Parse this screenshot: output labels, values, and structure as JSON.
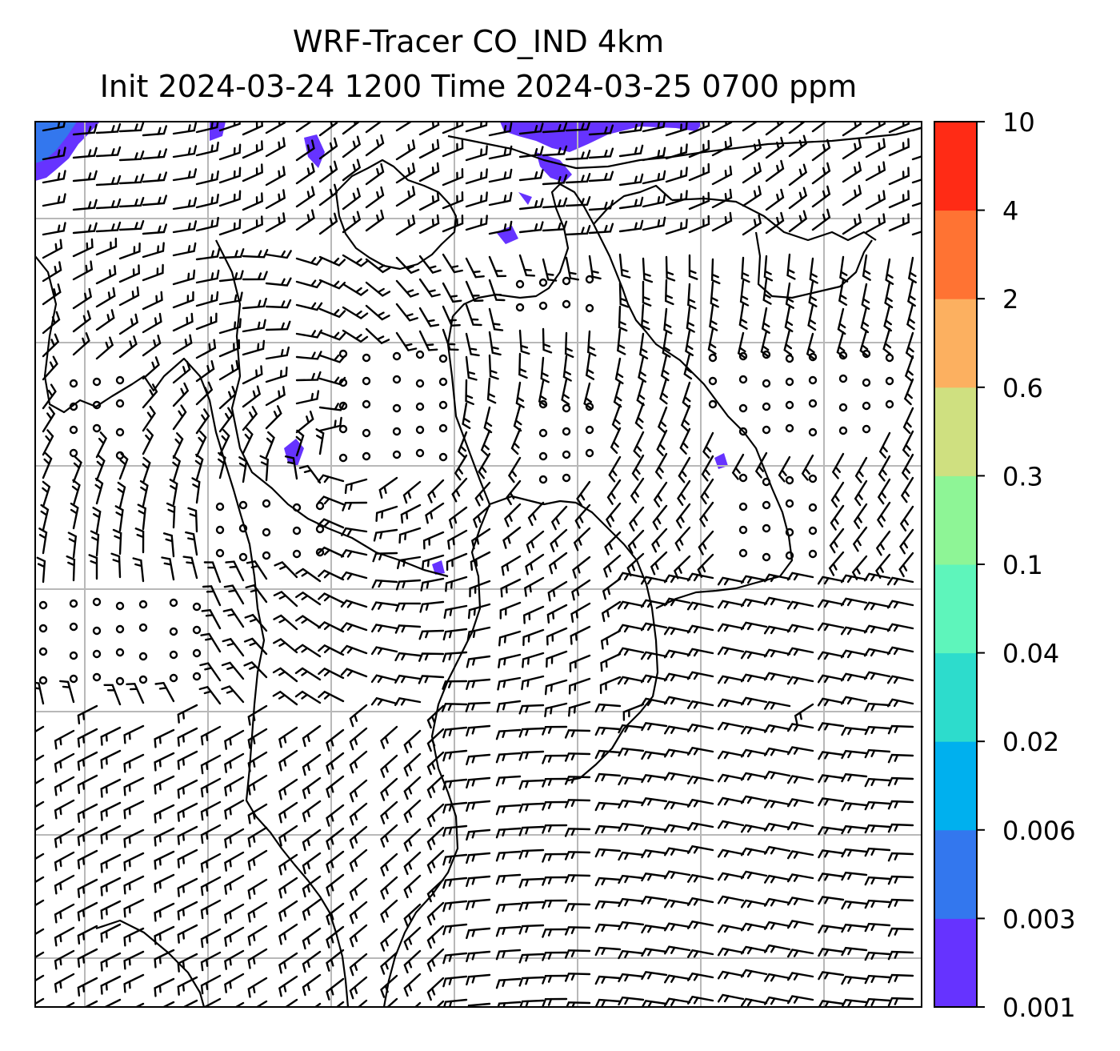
{
  "title": {
    "line1": "WRF-Tracer CO_IND 4km",
    "line2": "Init 2024-03-24 1200 Time 2024-03-25 0700 ppm"
  },
  "colorbar": {
    "levels": [
      "0.001",
      "0.003",
      "0.006",
      "0.02",
      "0.04",
      "0.1",
      "0.3",
      "0.6",
      "2",
      "4",
      "10"
    ],
    "colors": [
      "#6633ff",
      "#3377ee",
      "#00b0ee",
      "#2ddccc",
      "#5ef5bb",
      "#8ef596",
      "#cfe080",
      "#fcb060",
      "#ff7333",
      "#ff2b15"
    ]
  },
  "map": {
    "field": "CO_IND",
    "units": "ppm",
    "overlay": "wind barbs",
    "gridlines": true,
    "coastlines": true,
    "plume_colors": {
      "low": "#6633ff",
      "mid": "#3377ee"
    }
  }
}
